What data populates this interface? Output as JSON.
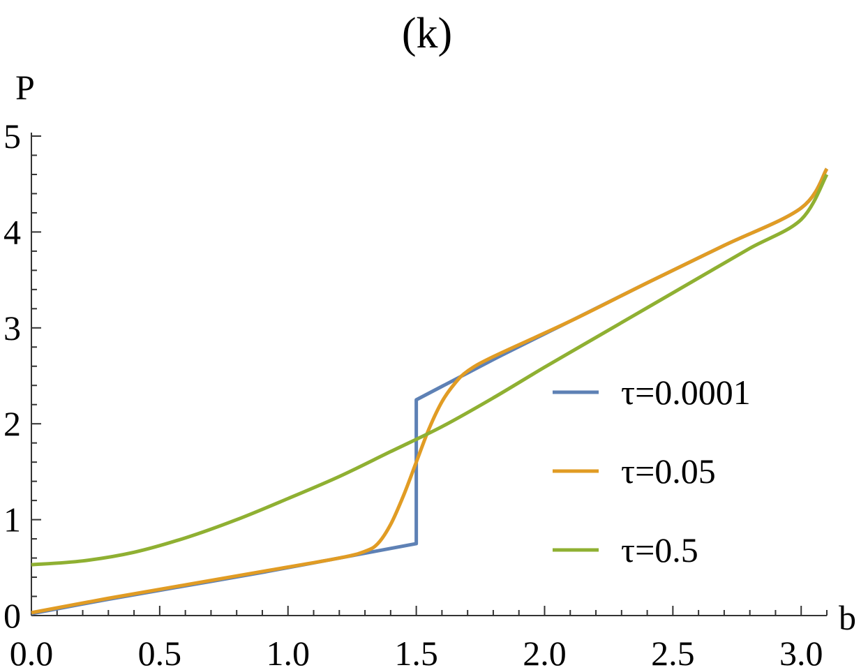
{
  "chart_data": {
    "type": "line",
    "title": "(k)",
    "xlabel": "b",
    "ylabel": "P",
    "xlim": [
      0,
      3.1
    ],
    "ylim": [
      0,
      5
    ],
    "x_ticks": [
      "0.0",
      "0.5",
      "1.0",
      "1.5",
      "2.0",
      "2.5",
      "3.0"
    ],
    "x_tick_values": [
      0,
      0.5,
      1.0,
      1.5,
      2.0,
      2.5,
      3.0
    ],
    "y_ticks": [
      "0",
      "1",
      "2",
      "3",
      "4",
      "5"
    ],
    "y_tick_values": [
      0,
      1,
      2,
      3,
      4,
      5
    ],
    "grid": false,
    "legend_position": "right",
    "series": [
      {
        "name": "τ=0.0001",
        "color": "#5e81b5",
        "points": [
          [
            0.0,
            0.02
          ],
          [
            0.3,
            0.17
          ],
          [
            0.6,
            0.31
          ],
          [
            0.9,
            0.45
          ],
          [
            1.2,
            0.6
          ],
          [
            1.5,
            0.75
          ],
          [
            1.5,
            2.25
          ],
          [
            1.8,
            2.67
          ],
          [
            2.1,
            3.07
          ],
          [
            2.4,
            3.47
          ],
          [
            2.7,
            3.86
          ],
          [
            3.0,
            4.25
          ],
          [
            3.1,
            4.66
          ]
        ]
      },
      {
        "name": "τ=0.05",
        "color": "#e19c24",
        "points": [
          [
            0.0,
            0.03
          ],
          [
            0.3,
            0.18
          ],
          [
            0.6,
            0.32
          ],
          [
            0.9,
            0.46
          ],
          [
            1.2,
            0.6
          ],
          [
            1.3,
            0.67
          ],
          [
            1.35,
            0.75
          ],
          [
            1.4,
            0.95
          ],
          [
            1.45,
            1.25
          ],
          [
            1.5,
            1.6
          ],
          [
            1.55,
            1.95
          ],
          [
            1.6,
            2.23
          ],
          [
            1.65,
            2.42
          ],
          [
            1.7,
            2.55
          ],
          [
            1.8,
            2.7
          ],
          [
            2.1,
            3.07
          ],
          [
            2.4,
            3.47
          ],
          [
            2.7,
            3.86
          ],
          [
            3.0,
            4.25
          ],
          [
            3.1,
            4.66
          ]
        ]
      },
      {
        "name": "τ=0.5",
        "color": "#8fb032",
        "points": [
          [
            0.0,
            0.53
          ],
          [
            0.2,
            0.57
          ],
          [
            0.4,
            0.66
          ],
          [
            0.6,
            0.81
          ],
          [
            0.8,
            1.0
          ],
          [
            1.0,
            1.22
          ],
          [
            1.2,
            1.45
          ],
          [
            1.4,
            1.71
          ],
          [
            1.6,
            1.97
          ],
          [
            1.8,
            2.27
          ],
          [
            2.0,
            2.59
          ],
          [
            2.2,
            2.9
          ],
          [
            2.4,
            3.21
          ],
          [
            2.6,
            3.52
          ],
          [
            2.8,
            3.83
          ],
          [
            3.0,
            4.13
          ],
          [
            3.1,
            4.6
          ]
        ]
      }
    ]
  }
}
